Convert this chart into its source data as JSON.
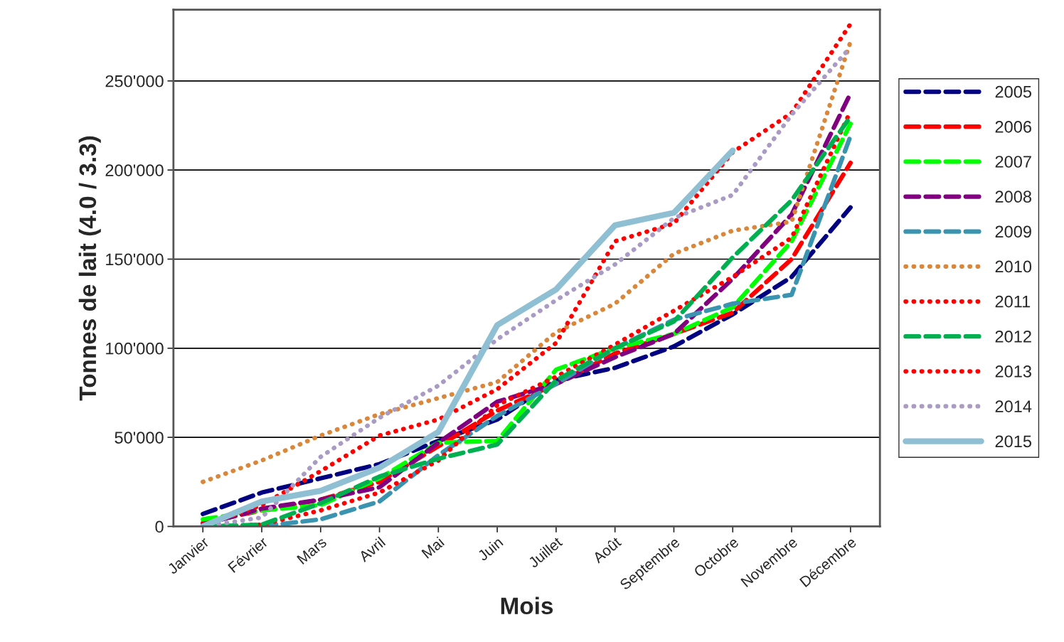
{
  "chart_data": {
    "type": "line",
    "xlabel": "Mois",
    "ylabel": "Tonnes de lait (4.0 / 3.3)",
    "categories": [
      "Janvier",
      "Février",
      "Mars",
      "Avril",
      "Mai",
      "Juin",
      "Juillet",
      "Août",
      "Septembre",
      "Octobre",
      "Novembre",
      "Décembre"
    ],
    "ylim": [
      0,
      290000
    ],
    "yticks": [
      0,
      {
        "value": 50000,
        "label": "50'000"
      },
      {
        "value": 100000,
        "label": "100'000"
      },
      {
        "value": 150000,
        "label": "150'000"
      },
      {
        "value": 200000,
        "label": "200'000"
      },
      {
        "value": 250000,
        "label": "250'000"
      }
    ],
    "grid": "y",
    "legend": "right",
    "marker": "none",
    "series": [
      {
        "name": "2005",
        "color": "#000080",
        "line_style": "dashed",
        "values": [
          7000,
          19000,
          27000,
          35000,
          48000,
          60000,
          82000,
          89000,
          101000,
          119000,
          140000,
          179000
        ]
      },
      {
        "name": "2006",
        "color": "#ff0000",
        "line_style": "dashed",
        "values": [
          2000,
          9000,
          15000,
          25000,
          45000,
          65000,
          80000,
          97000,
          108000,
          120000,
          150000,
          204000
        ]
      },
      {
        "name": "2007",
        "color": "#00ff00",
        "line_style": "dashed",
        "values": [
          4000,
          9000,
          12000,
          27000,
          47000,
          48000,
          88000,
          100000,
          108000,
          123000,
          160000,
          226000
        ]
      },
      {
        "name": "2008",
        "color": "#800080",
        "line_style": "dashed",
        "values": [
          1000,
          10000,
          15000,
          22000,
          47000,
          70000,
          80000,
          95000,
          108000,
          139000,
          175000,
          243000
        ]
      },
      {
        "name": "2009",
        "color": "#3a94b0",
        "line_style": "dashed",
        "values": [
          0,
          0,
          4000,
          14000,
          40000,
          62000,
          80000,
          100000,
          116000,
          125000,
          130000,
          219000
        ]
      },
      {
        "name": "2010",
        "color": "#d9873a",
        "line_style": "dotted",
        "values": [
          25000,
          37000,
          51000,
          63000,
          72000,
          81000,
          109000,
          125000,
          153000,
          166000,
          171000,
          272000
        ]
      },
      {
        "name": "2011",
        "color": "#ff0000",
        "line_style": "dotted",
        "values": [
          0,
          1000,
          9000,
          19000,
          37000,
          68000,
          84000,
          102000,
          121000,
          140000,
          162000,
          233000
        ]
      },
      {
        "name": "2012",
        "color": "#00b050",
        "line_style": "dashed",
        "values": [
          0,
          1000,
          13000,
          28000,
          38000,
          46000,
          82000,
          100000,
          115000,
          151000,
          183000,
          230000
        ]
      },
      {
        "name": "2013",
        "color": "#ff0000",
        "line_style": "dotted",
        "values": [
          0,
          12000,
          31000,
          51000,
          60000,
          77000,
          103000,
          160000,
          170000,
          210000,
          232000,
          282000
        ]
      },
      {
        "name": "2014",
        "color": "#a99bc3",
        "line_style": "dotted",
        "values": [
          0,
          5000,
          39000,
          61000,
          79000,
          105000,
          127000,
          147000,
          173000,
          186000,
          231000,
          269000
        ]
      },
      {
        "name": "2015",
        "color": "#8fbfd2",
        "line_style": "solid",
        "values": [
          0,
          14000,
          20000,
          33000,
          53000,
          113000,
          133000,
          169000,
          176000,
          211000,
          null,
          null
        ]
      }
    ]
  }
}
